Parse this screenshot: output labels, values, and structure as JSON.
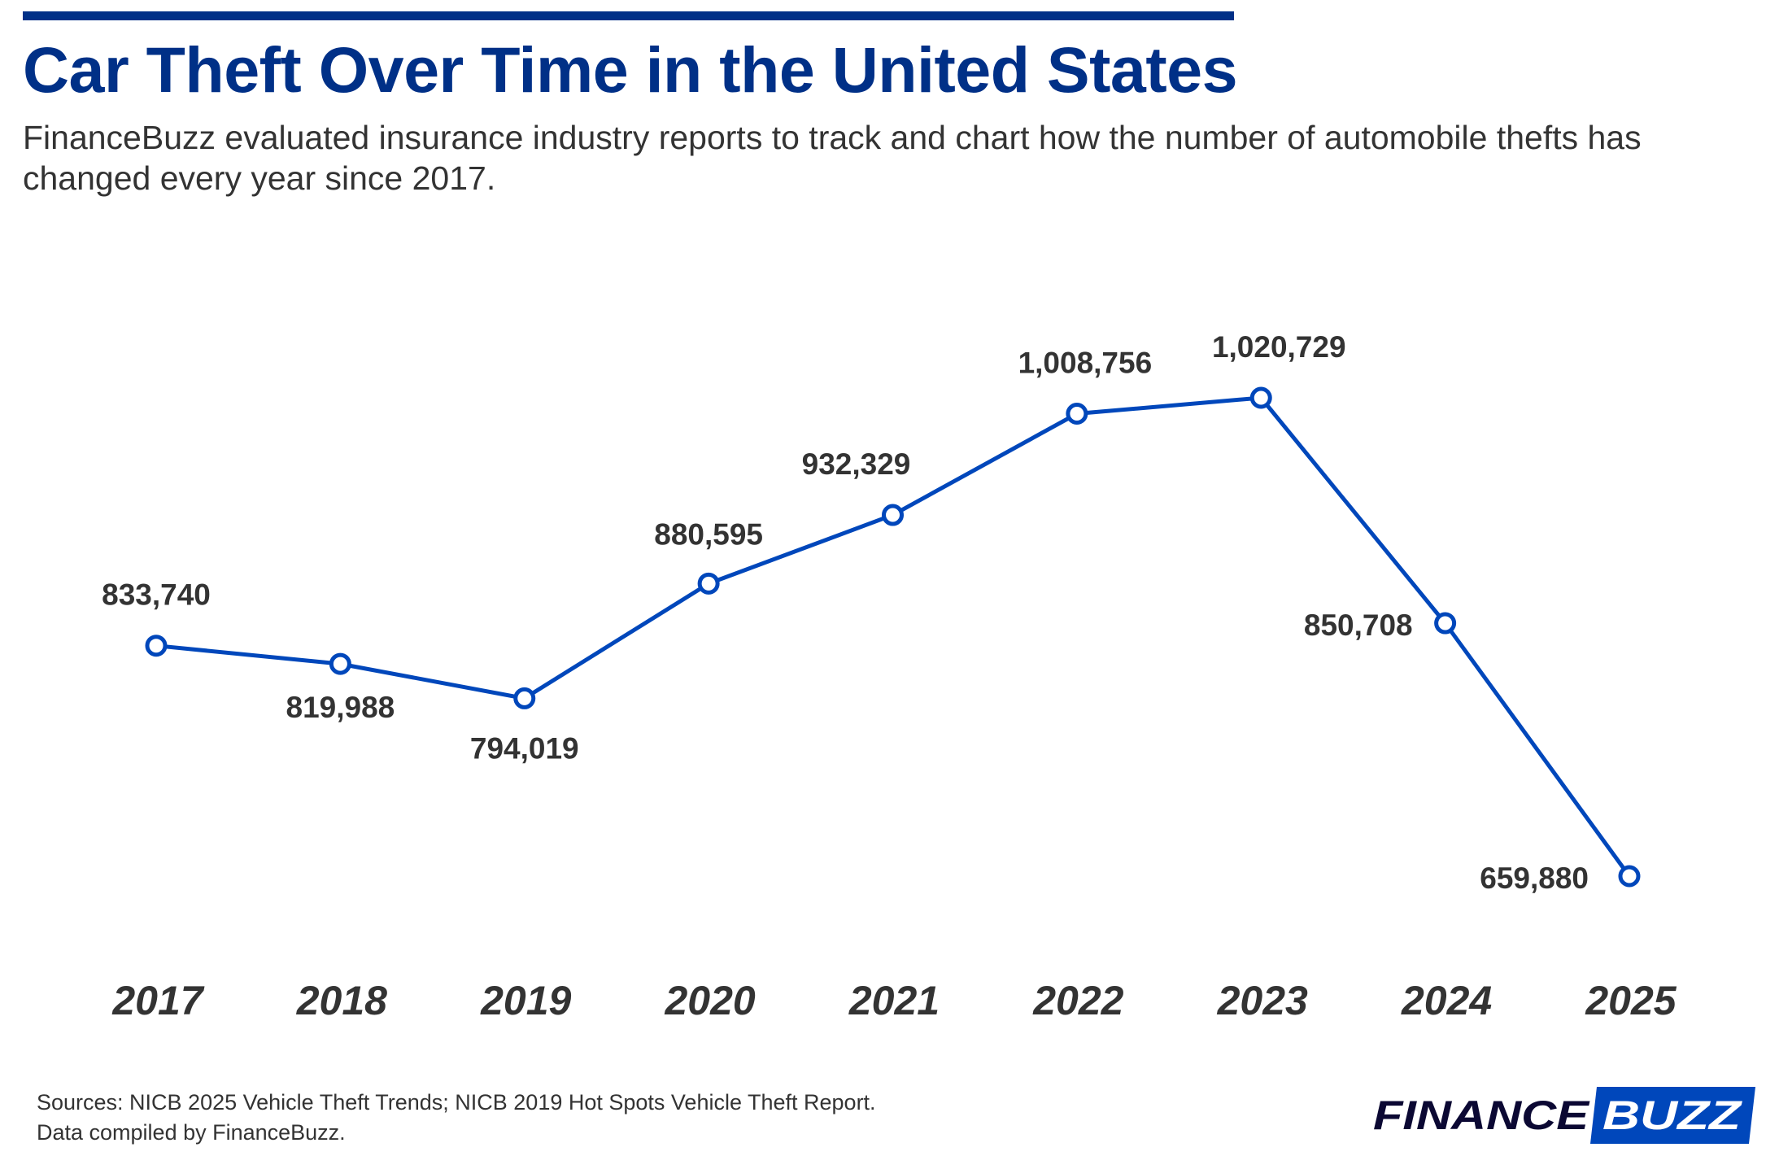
{
  "header": {
    "title": "Car Theft Over Time in the United States",
    "subtitle": "FinanceBuzz evaluated insurance industry reports to track and chart how the number of automobile thefts has changed every year since 2017."
  },
  "chart_data": {
    "type": "line",
    "categories": [
      "2017",
      "2018",
      "2019",
      "2020",
      "2021",
      "2022",
      "2023",
      "2024",
      "2025"
    ],
    "values": [
      833740,
      819988,
      794019,
      880595,
      932329,
      1008756,
      1020729,
      850708,
      659880
    ],
    "data_labels": [
      "833,740",
      "819,988",
      "794,019",
      "880,595",
      "932,329",
      "1,008,756",
      "1,020,729",
      "850,708",
      "659,880"
    ],
    "title": "",
    "xlabel": "",
    "ylabel": "",
    "grid": false,
    "y_axis_visible": false,
    "line_color": "#0047BB",
    "marker": "hollow-circle"
  },
  "footer": {
    "sources": "Sources: NICB 2025 Vehicle Theft Trends; NICB 2019 Hot Spots Vehicle Theft Report.",
    "compiled": "Data compiled by FinanceBuzz.",
    "logo_text": "FINANCEBUZZ",
    "logo_dark": "#0B0833",
    "logo_blue": "#0047BB"
  }
}
